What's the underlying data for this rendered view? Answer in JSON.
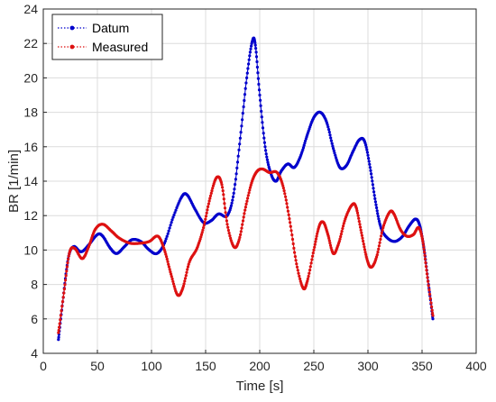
{
  "chart_data": {
    "type": "line",
    "title": "",
    "xlabel": "Time [s]",
    "ylabel": "BR [1/min]",
    "xlim": [
      0,
      400
    ],
    "ylim": [
      4,
      24
    ],
    "xticks": [
      0,
      50,
      100,
      150,
      200,
      250,
      300,
      350,
      400
    ],
    "yticks": [
      4,
      6,
      8,
      10,
      12,
      14,
      16,
      18,
      20,
      22,
      24
    ],
    "grid": true,
    "legend_position": "top-left",
    "series": [
      {
        "name": "Datum",
        "color": "#0000cc",
        "style": "dotted-markers",
        "points": [
          [
            14,
            4.8
          ],
          [
            18,
            7.0
          ],
          [
            23,
            9.5
          ],
          [
            28,
            10.2
          ],
          [
            35,
            9.9
          ],
          [
            42,
            10.3
          ],
          [
            50,
            10.9
          ],
          [
            55,
            10.8
          ],
          [
            62,
            10.1
          ],
          [
            68,
            9.8
          ],
          [
            75,
            10.2
          ],
          [
            82,
            10.6
          ],
          [
            90,
            10.5
          ],
          [
            98,
            10.0
          ],
          [
            105,
            9.8
          ],
          [
            112,
            10.4
          ],
          [
            120,
            11.9
          ],
          [
            128,
            13.1
          ],
          [
            133,
            13.2
          ],
          [
            140,
            12.4
          ],
          [
            148,
            11.6
          ],
          [
            155,
            11.7
          ],
          [
            162,
            12.1
          ],
          [
            170,
            12.0
          ],
          [
            176,
            13.3
          ],
          [
            182,
            16.5
          ],
          [
            188,
            20.0
          ],
          [
            193,
            22.1
          ],
          [
            196,
            21.9
          ],
          [
            200,
            19.0
          ],
          [
            205,
            16.0
          ],
          [
            210,
            14.5
          ],
          [
            215,
            14.0
          ],
          [
            220,
            14.6
          ],
          [
            226,
            15.0
          ],
          [
            232,
            14.8
          ],
          [
            238,
            15.5
          ],
          [
            244,
            16.7
          ],
          [
            250,
            17.7
          ],
          [
            256,
            18.0
          ],
          [
            262,
            17.4
          ],
          [
            268,
            15.9
          ],
          [
            274,
            14.8
          ],
          [
            280,
            14.9
          ],
          [
            286,
            15.7
          ],
          [
            292,
            16.4
          ],
          [
            297,
            16.3
          ],
          [
            302,
            14.8
          ],
          [
            307,
            12.8
          ],
          [
            312,
            11.3
          ],
          [
            318,
            10.7
          ],
          [
            325,
            10.5
          ],
          [
            332,
            10.8
          ],
          [
            338,
            11.4
          ],
          [
            344,
            11.8
          ],
          [
            348,
            11.4
          ],
          [
            352,
            10.0
          ],
          [
            356,
            8.0
          ],
          [
            360,
            6.0
          ]
        ]
      },
      {
        "name": "Measured",
        "color": "#dd1111",
        "style": "dotted-markers",
        "points": [
          [
            14,
            5.2
          ],
          [
            19,
            7.5
          ],
          [
            24,
            9.8
          ],
          [
            29,
            10.1
          ],
          [
            36,
            9.5
          ],
          [
            42,
            10.2
          ],
          [
            48,
            11.2
          ],
          [
            55,
            11.5
          ],
          [
            63,
            11.1
          ],
          [
            70,
            10.7
          ],
          [
            80,
            10.4
          ],
          [
            90,
            10.4
          ],
          [
            98,
            10.5
          ],
          [
            106,
            10.8
          ],
          [
            112,
            10.0
          ],
          [
            118,
            8.6
          ],
          [
            124,
            7.4
          ],
          [
            129,
            7.8
          ],
          [
            135,
            9.3
          ],
          [
            142,
            10.1
          ],
          [
            148,
            11.3
          ],
          [
            154,
            13.0
          ],
          [
            160,
            14.2
          ],
          [
            165,
            13.8
          ],
          [
            170,
            11.5
          ],
          [
            176,
            10.2
          ],
          [
            181,
            10.6
          ],
          [
            187,
            12.5
          ],
          [
            193,
            14.0
          ],
          [
            198,
            14.6
          ],
          [
            203,
            14.7
          ],
          [
            209,
            14.5
          ],
          [
            216,
            14.5
          ],
          [
            222,
            13.6
          ],
          [
            228,
            11.6
          ],
          [
            234,
            9.2
          ],
          [
            240,
            7.8
          ],
          [
            244,
            8.2
          ],
          [
            250,
            10.0
          ],
          [
            255,
            11.4
          ],
          [
            259,
            11.6
          ],
          [
            263,
            10.9
          ],
          [
            268,
            9.8
          ],
          [
            273,
            10.4
          ],
          [
            279,
            11.8
          ],
          [
            285,
            12.6
          ],
          [
            289,
            12.5
          ],
          [
            294,
            11.0
          ],
          [
            299,
            9.5
          ],
          [
            303,
            9.0
          ],
          [
            308,
            9.6
          ],
          [
            314,
            11.3
          ],
          [
            320,
            12.2
          ],
          [
            324,
            12.1
          ],
          [
            330,
            11.2
          ],
          [
            336,
            10.8
          ],
          [
            342,
            10.9
          ],
          [
            347,
            11.3
          ],
          [
            351,
            10.4
          ],
          [
            355,
            8.4
          ],
          [
            360,
            6.2
          ]
        ]
      }
    ]
  }
}
